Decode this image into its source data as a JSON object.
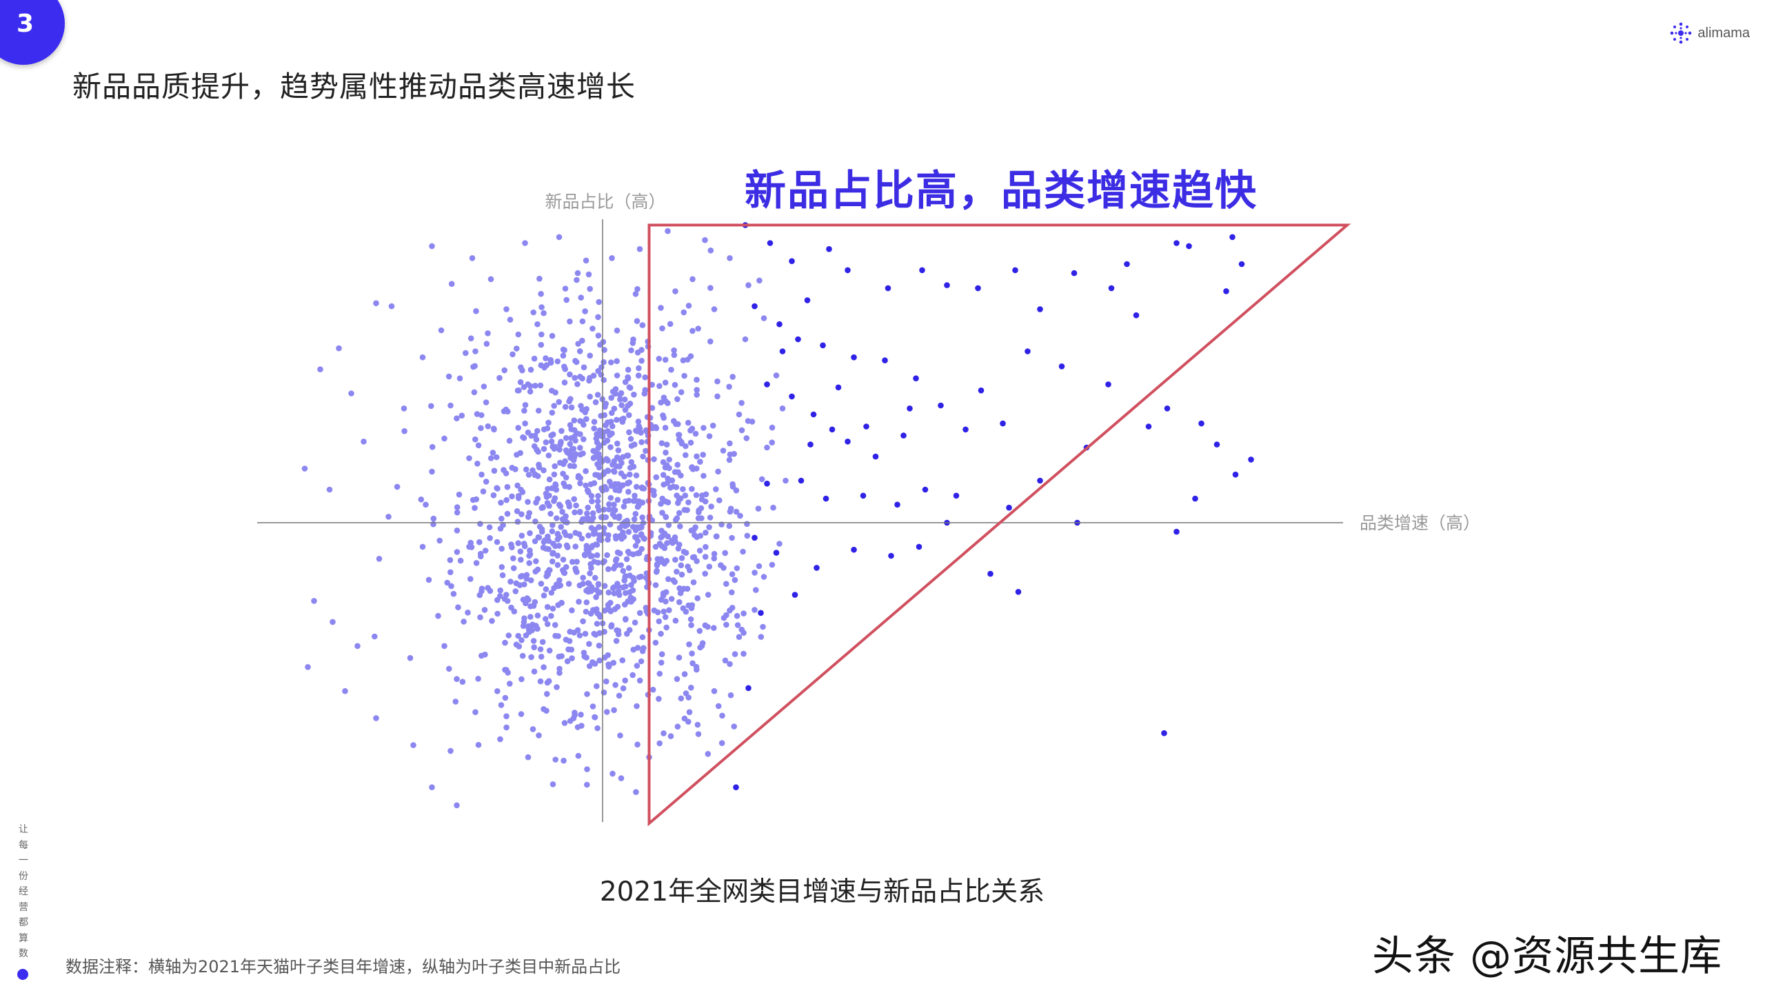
{
  "page": {
    "page_number": "3",
    "title": "新品品质提升，趋势属性推动品类高速增长",
    "brand": "alimama",
    "highlight": "新品占比高，品类增速趋快",
    "caption": "2021年全网类目增速与新品占比关系",
    "note": "数据注释：横轴为2021年天猫叶子类目年增速，纵轴为叶子类目中新品占比",
    "side_text": "让每一份经营都算数",
    "watermark": "头条 @资源共生库"
  },
  "colors": {
    "light_dots": "#8c87f0",
    "dark_dots": "#2f22e6",
    "accent": "#3c2de4",
    "triangle": "#d0505f",
    "axis": "#666666"
  },
  "chart_data": {
    "type": "scatter",
    "title": "2021年全网类目增速与新品占比关系",
    "xlabel": "品类增速（高）",
    "ylabel": "新品占比（高）",
    "xlim": [
      -1,
      2.2
    ],
    "ylim": [
      -1,
      1
    ],
    "grid": false,
    "legend": "none",
    "note": "Relative units: axes cross at origin. Light dots = dense cluster near the centre; dark dots = categories with high growth.",
    "highlight_region": {
      "label": "新品占比高，品类增速趋快",
      "vertices": [
        [
          0.15,
          0.99
        ],
        [
          2.4,
          0.99
        ],
        [
          0.15,
          -1.0
        ]
      ]
    },
    "series": [
      {
        "name": "",
        "color": "#8c87f0",
        "points": [
          [
            -0.55,
            0.92
          ],
          [
            -0.42,
            0.88
          ],
          [
            -0.73,
            0.73
          ],
          [
            -0.68,
            0.72
          ],
          [
            -0.85,
            0.58
          ],
          [
            -0.91,
            0.51
          ],
          [
            -0.81,
            0.43
          ],
          [
            -0.64,
            0.38
          ],
          [
            -0.96,
            0.18
          ],
          [
            -0.88,
            0.11
          ],
          [
            -0.77,
            0.27
          ],
          [
            -0.69,
            0.02
          ],
          [
            -0.72,
            -0.12
          ],
          [
            -0.93,
            -0.26
          ],
          [
            -0.87,
            -0.33
          ],
          [
            -0.79,
            -0.41
          ],
          [
            -0.95,
            -0.48
          ],
          [
            -0.83,
            -0.56
          ],
          [
            -0.73,
            -0.65
          ],
          [
            -0.61,
            -0.74
          ],
          [
            -0.55,
            -0.88
          ],
          [
            -0.47,
            -0.94
          ],
          [
            -0.62,
            -0.45
          ],
          [
            -0.58,
            0.55
          ],
          [
            -0.52,
            0.64
          ],
          [
            -0.36,
            0.81
          ],
          [
            -0.31,
            0.71
          ],
          [
            -0.25,
            0.93
          ],
          [
            -0.14,
            0.95
          ],
          [
            -0.08,
            0.83
          ],
          [
            0.03,
            0.88
          ],
          [
            0.12,
            0.91
          ],
          [
            0.21,
            0.97
          ],
          [
            0.33,
            0.94
          ],
          [
            0.41,
            0.88
          ],
          [
            0.47,
            0.79
          ],
          [
            0.52,
            0.68
          ],
          [
            0.46,
            0.61
          ],
          [
            0.56,
            0.49
          ],
          [
            0.58,
            0.38
          ],
          [
            0.53,
            0.25
          ],
          [
            0.59,
            0.14
          ],
          [
            0.55,
            0.05
          ],
          [
            0.57,
            -0.07
          ],
          [
            0.52,
            -0.18
          ],
          [
            0.49,
            -0.29
          ],
          [
            0.44,
            -0.38
          ],
          [
            0.41,
            -0.47
          ],
          [
            0.36,
            -0.56
          ],
          [
            0.28,
            -0.63
          ],
          [
            0.22,
            -0.71
          ],
          [
            0.15,
            -0.78
          ],
          [
            0.06,
            -0.85
          ],
          [
            -0.05,
            -0.82
          ],
          [
            -0.16,
            -0.87
          ],
          [
            -0.24,
            -0.78
          ],
          [
            -0.33,
            -0.72
          ],
          [
            -0.41,
            -0.63
          ],
          [
            -0.47,
            -0.52
          ],
          [
            -0.51,
            -0.41
          ],
          [
            -0.53,
            -0.31
          ],
          [
            -0.56,
            -0.19
          ],
          [
            -0.58,
            -0.08
          ],
          [
            -0.57,
            0.06
          ],
          [
            -0.55,
            0.17
          ],
          [
            -0.51,
            0.28
          ],
          [
            -0.49,
            0.39
          ],
          [
            -0.46,
            0.48
          ],
          [
            -0.41,
            0.57
          ],
          [
            -0.37,
            0.63
          ],
          [
            -0.29,
            0.56
          ],
          [
            -0.21,
            0.66
          ],
          [
            0.36,
            0.71
          ],
          [
            0.29,
            0.81
          ],
          [
            0.26,
            0.54
          ],
          [
            0.37,
            0.47
          ],
          [
            0.44,
            0.36
          ],
          [
            0.42,
            0.12
          ],
          [
            0.39,
            -0.15
          ],
          [
            0.32,
            -0.41
          ],
          [
            0.24,
            -0.52
          ],
          [
            0.11,
            -0.61
          ],
          [
            -0.08,
            -0.68
          ],
          [
            -0.19,
            -0.62
          ],
          [
            -0.31,
            -0.49
          ],
          [
            -0.38,
            -0.29
          ],
          [
            -0.43,
            -0.08
          ],
          [
            -0.39,
            0.16
          ],
          [
            -0.35,
            0.31
          ],
          [
            -0.27,
            0.44
          ]
        ]
      },
      {
        "name": "",
        "color": "#2f22e6",
        "points": [
          [
            0.46,
            0.99
          ],
          [
            0.54,
            0.93
          ],
          [
            0.61,
            0.87
          ],
          [
            0.73,
            0.91
          ],
          [
            0.79,
            0.84
          ],
          [
            0.92,
            0.78
          ],
          [
            1.03,
            0.84
          ],
          [
            1.11,
            0.79
          ],
          [
            1.21,
            0.78
          ],
          [
            1.33,
            0.84
          ],
          [
            1.41,
            0.71
          ],
          [
            1.52,
            0.83
          ],
          [
            1.64,
            0.78
          ],
          [
            1.69,
            0.86
          ],
          [
            1.85,
            0.93
          ],
          [
            1.89,
            0.92
          ],
          [
            2.03,
            0.95
          ],
          [
            2.06,
            0.86
          ],
          [
            0.49,
            0.72
          ],
          [
            0.57,
            0.66
          ],
          [
            0.63,
            0.61
          ],
          [
            0.71,
            0.59
          ],
          [
            0.81,
            0.55
          ],
          [
            0.91,
            0.54
          ],
          [
            1.01,
            0.48
          ],
          [
            0.53,
            0.46
          ],
          [
            0.61,
            0.42
          ],
          [
            0.68,
            0.36
          ],
          [
            0.74,
            0.31
          ],
          [
            0.79,
            0.27
          ],
          [
            0.88,
            0.22
          ],
          [
            0.97,
            0.29
          ],
          [
            1.09,
            0.39
          ],
          [
            1.17,
            0.31
          ],
          [
            1.29,
            0.33
          ],
          [
            1.41,
            0.14
          ],
          [
            1.56,
            0.25
          ],
          [
            1.63,
            0.46
          ],
          [
            1.76,
            0.32
          ],
          [
            1.82,
            0.38
          ],
          [
            1.93,
            0.33
          ],
          [
            1.98,
            0.26
          ],
          [
            2.01,
            0.77
          ],
          [
            2.09,
            0.21
          ],
          [
            1.91,
            0.08
          ],
          [
            2.04,
            0.16
          ],
          [
            1.85,
            -0.03
          ],
          [
            1.53,
            0.0
          ],
          [
            1.11,
            0.0
          ],
          [
            1.25,
            -0.17
          ],
          [
            1.34,
            -0.23
          ],
          [
            1.31,
            0.05
          ],
          [
            0.93,
            -0.11
          ],
          [
            0.81,
            -0.09
          ],
          [
            0.69,
            -0.15
          ],
          [
            0.56,
            -0.1
          ],
          [
            0.49,
            -0.05
          ],
          [
            0.53,
            0.13
          ],
          [
            0.64,
            0.14
          ],
          [
            0.72,
            0.08
          ],
          [
            0.84,
            0.09
          ],
          [
            0.95,
            0.06
          ],
          [
            1.04,
            0.11
          ],
          [
            1.14,
            0.09
          ],
          [
            0.62,
            -0.24
          ],
          [
            0.51,
            -0.3
          ],
          [
            0.47,
            -0.55
          ],
          [
            0.43,
            -0.88
          ],
          [
            1.81,
            -0.7
          ],
          [
            1.02,
            -0.08
          ],
          [
            0.76,
            0.45
          ],
          [
            0.66,
            0.74
          ],
          [
            0.58,
            0.57
          ],
          [
            0.85,
            0.32
          ],
          [
            1.22,
            0.44
          ],
          [
            1.37,
            0.57
          ],
          [
            1.48,
            0.52
          ],
          [
            1.72,
            0.69
          ],
          [
            0.67,
            0.26
          ],
          [
            0.99,
            0.38
          ]
        ]
      }
    ]
  }
}
